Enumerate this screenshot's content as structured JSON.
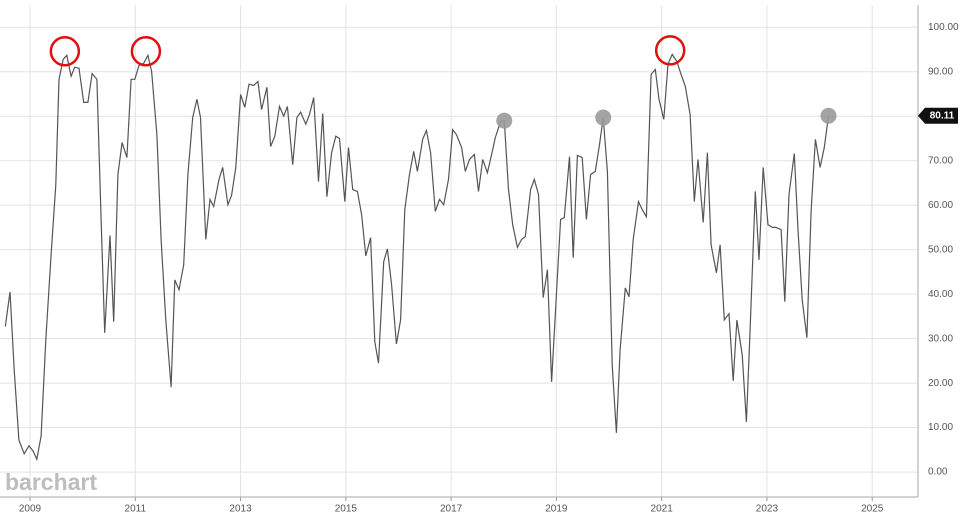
{
  "chart_data": {
    "type": "line",
    "watermark": "barchart",
    "color": "#555555",
    "circle_color": "#e01010",
    "dot_color": "#9a9a9a",
    "grid": true,
    "circled_x": [
      2009.7,
      2011.24,
      2021.2
    ],
    "dot_x": [
      2018.01,
      2019.89,
      2024.17
    ],
    "x": [
      2008.53,
      2008.62,
      2008.7,
      2008.79,
      2008.89,
      2008.98,
      2009.06,
      2009.13,
      2009.21,
      2009.3,
      2009.4,
      2009.49,
      2009.55,
      2009.63,
      2009.7,
      2009.78,
      2009.85,
      2009.93,
      2010.02,
      2010.1,
      2010.18,
      2010.27,
      2010.35,
      2010.42,
      2010.52,
      2010.59,
      2010.67,
      2010.75,
      2010.84,
      2010.92,
      2010.99,
      2011.07,
      2011.16,
      2011.24,
      2011.31,
      2011.41,
      2011.49,
      2011.58,
      2011.68,
      2011.75,
      2011.83,
      2011.92,
      2012.0,
      2012.09,
      2012.17,
      2012.24,
      2012.34,
      2012.42,
      2012.49,
      2012.59,
      2012.66,
      2012.76,
      2012.83,
      2012.91,
      2013.0,
      2013.08,
      2013.16,
      2013.25,
      2013.33,
      2013.4,
      2013.5,
      2013.57,
      2013.65,
      2013.74,
      2013.82,
      2013.89,
      2013.99,
      2014.07,
      2014.14,
      2014.24,
      2014.31,
      2014.39,
      2014.48,
      2014.56,
      2014.64,
      2014.73,
      2014.81,
      2014.88,
      2014.98,
      2015.05,
      2015.13,
      2015.22,
      2015.3,
      2015.38,
      2015.47,
      2015.55,
      2015.62,
      2015.72,
      2015.79,
      2015.87,
      2015.96,
      2016.04,
      2016.12,
      2016.21,
      2016.29,
      2016.36,
      2016.46,
      2016.53,
      2016.61,
      2016.7,
      2016.78,
      2016.86,
      2016.95,
      2017.03,
      2017.1,
      2017.2,
      2017.27,
      2017.35,
      2017.44,
      2017.52,
      2017.6,
      2017.69,
      2017.77,
      2017.84,
      2017.94,
      2018.01,
      2018.09,
      2018.17,
      2018.26,
      2018.34,
      2018.41,
      2018.51,
      2018.58,
      2018.66,
      2018.75,
      2018.83,
      2018.91,
      2019.0,
      2019.08,
      2019.15,
      2019.25,
      2019.32,
      2019.4,
      2019.49,
      2019.57,
      2019.65,
      2019.74,
      2019.82,
      2019.89,
      2019.97,
      2020.06,
      2020.14,
      2020.21,
      2020.31,
      2020.38,
      2020.46,
      2020.56,
      2020.63,
      2020.71,
      2020.8,
      2020.88,
      2020.95,
      2021.04,
      2021.12,
      2021.2,
      2021.29,
      2021.37,
      2021.45,
      2021.54,
      2021.62,
      2021.69,
      2021.79,
      2021.87,
      2021.94,
      2022.04,
      2022.11,
      2022.19,
      2022.28,
      2022.36,
      2022.43,
      2022.53,
      2022.61,
      2022.68,
      2022.78,
      2022.85,
      2022.93,
      2023.02,
      2023.1,
      2023.17,
      2023.27,
      2023.34,
      2023.42,
      2023.52,
      2023.59,
      2023.67,
      2023.76,
      2023.84,
      2023.92,
      2024.01,
      2024.09,
      2024.17
    ],
    "values": [
      32.7,
      40.5,
      23,
      7.2,
      4.1,
      5.9,
      4.7,
      2.9,
      8.1,
      29.7,
      48.9,
      64.6,
      88.3,
      92.8,
      93.7,
      89,
      91,
      90.8,
      83.1,
      83.1,
      89.6,
      88.3,
      56.8,
      31.3,
      53.2,
      33.8,
      66.9,
      74.1,
      70.7,
      88.3,
      88.3,
      91.4,
      91.9,
      93.7,
      90.1,
      75.9,
      52.3,
      34.2,
      19.1,
      43.2,
      41,
      46.6,
      66.9,
      79.7,
      83.8,
      79.7,
      52.3,
      61.3,
      59.7,
      65.8,
      68.5,
      60.1,
      62.2,
      68.5,
      84.9,
      82,
      87.2,
      86.9,
      87.8,
      81.5,
      86.5,
      73.2,
      75.5,
      82.2,
      80,
      82.2,
      69.1,
      79.7,
      80.9,
      78.2,
      80.4,
      84.2,
      65.3,
      80.6,
      61.9,
      71.8,
      75.5,
      75,
      60.8,
      73,
      63.5,
      63.1,
      57.9,
      48.6,
      52.7,
      29.3,
      24.5,
      47.3,
      50.2,
      42.1,
      28.8,
      34.2,
      59,
      66.9,
      72.1,
      67.6,
      74.8,
      76.8,
      71.8,
      58.6,
      61.3,
      60.1,
      65.8,
      77,
      75.9,
      73,
      67.6,
      70.3,
      71.4,
      63.1,
      70.3,
      67.3,
      71.4,
      75.2,
      78.8,
      79,
      63.5,
      55.6,
      50.5,
      52.3,
      52.9,
      63.5,
      65.8,
      62.4,
      39.2,
      45.5,
      20.3,
      39.9,
      56.8,
      57.2,
      70.9,
      48.2,
      71.2,
      70.7,
      56.8,
      66.9,
      67.6,
      73.6,
      79.7,
      67.6,
      24.1,
      8.8,
      27.5,
      41.4,
      39.4,
      52.3,
      60.8,
      59,
      57.4,
      89.4,
      90.5,
      83.8,
      79.3,
      91.7,
      93.9,
      92.3,
      89.4,
      86.7,
      80.4,
      60.8,
      70.3,
      56.1,
      71.8,
      51.1,
      44.8,
      51.1,
      34.2,
      35.6,
      20.5,
      34.2,
      26.4,
      11.3,
      32,
      63.1,
      47.7,
      68.5,
      55.6,
      55,
      55,
      54.5,
      38.3,
      62.4,
      71.6,
      54.5,
      38.7,
      30.2,
      58.6,
      74.8,
      68.5,
      73,
      80.11
    ],
    "xlim": [
      2008.43,
      2025.87
    ],
    "xticks": [
      2009,
      2011,
      2013,
      2015,
      2017,
      2019,
      2021,
      2023,
      2025
    ],
    "ylim": [
      -5.6,
      105
    ],
    "yticks": [
      {
        "value": 0,
        "label": "0.00"
      },
      {
        "value": 10,
        "label": "10.00"
      },
      {
        "value": 20,
        "label": "20.00"
      },
      {
        "value": 30,
        "label": "30.00"
      },
      {
        "value": 40,
        "label": "40.00"
      },
      {
        "value": 50,
        "label": "50.00"
      },
      {
        "value": 60,
        "label": "60.00"
      },
      {
        "value": 70,
        "label": "70.00"
      },
      {
        "value": 80,
        "label": "80.00"
      },
      {
        "value": 90,
        "label": "90.00"
      },
      {
        "value": 100,
        "label": "100.00"
      }
    ]
  }
}
